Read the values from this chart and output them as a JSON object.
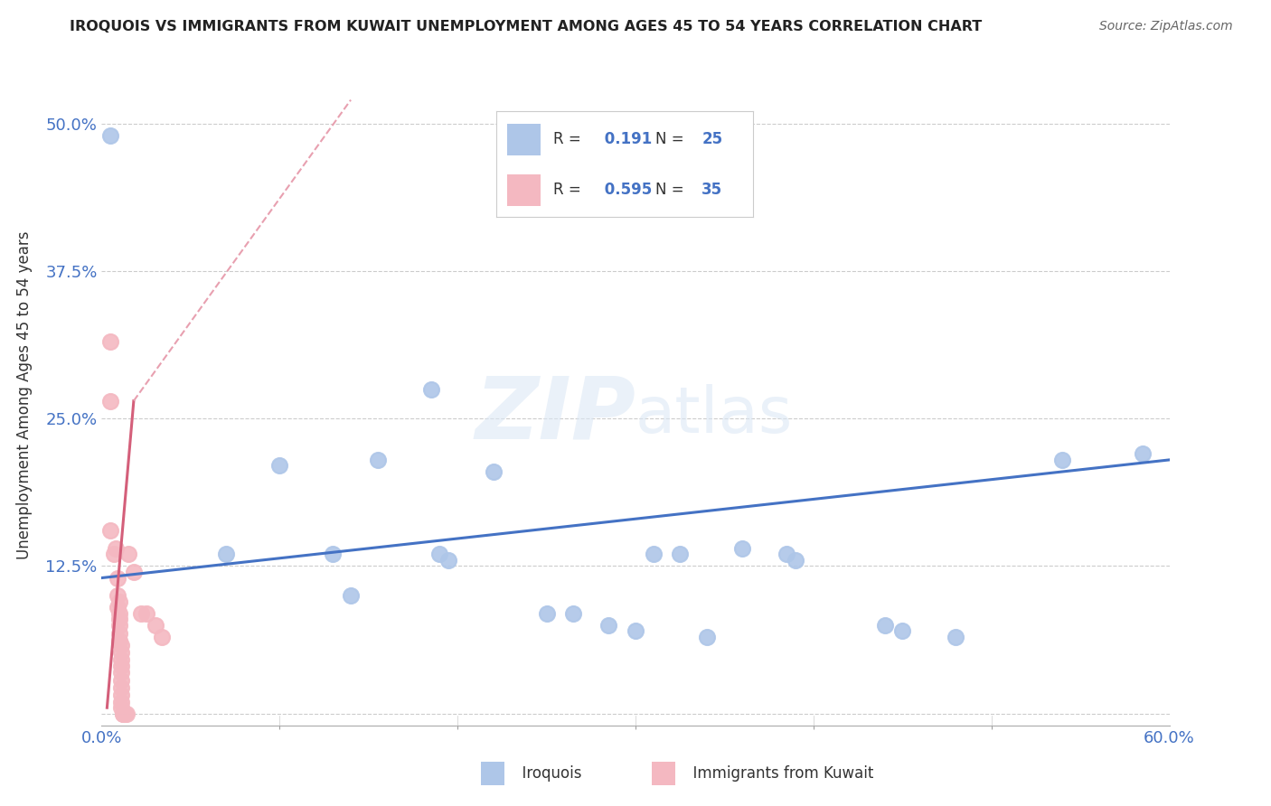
{
  "title": "IROQUOIS VS IMMIGRANTS FROM KUWAIT UNEMPLOYMENT AMONG AGES 45 TO 54 YEARS CORRELATION CHART",
  "source": "Source: ZipAtlas.com",
  "ylabel": "Unemployment Among Ages 45 to 54 years",
  "watermark": "ZIPatlas",
  "xlim": [
    0.0,
    0.6
  ],
  "ylim": [
    -0.01,
    0.55
  ],
  "yticks": [
    0.0,
    0.125,
    0.25,
    0.375,
    0.5
  ],
  "yticklabels": [
    "",
    "12.5%",
    "25.0%",
    "37.5%",
    "50.0%"
  ],
  "xticks": [
    0.0,
    0.6
  ],
  "xticklabels": [
    "0.0%",
    "60.0%"
  ],
  "R_iroquois": 0.191,
  "N_iroquois": 25,
  "R_kuwait": 0.595,
  "N_kuwait": 35,
  "iroquois_color": "#aec6e8",
  "kuwait_color": "#f4b8c1",
  "iroquois_line_color": "#4472c4",
  "kuwait_line_color": "#d45f7a",
  "kuwait_dash_color": "#e8a0b0",
  "iroquois_scatter": [
    [
      0.005,
      0.49
    ],
    [
      0.07,
      0.135
    ],
    [
      0.1,
      0.21
    ],
    [
      0.13,
      0.135
    ],
    [
      0.14,
      0.1
    ],
    [
      0.155,
      0.215
    ],
    [
      0.185,
      0.275
    ],
    [
      0.19,
      0.135
    ],
    [
      0.195,
      0.13
    ],
    [
      0.22,
      0.205
    ],
    [
      0.25,
      0.085
    ],
    [
      0.265,
      0.085
    ],
    [
      0.285,
      0.075
    ],
    [
      0.3,
      0.07
    ],
    [
      0.31,
      0.135
    ],
    [
      0.325,
      0.135
    ],
    [
      0.34,
      0.065
    ],
    [
      0.36,
      0.14
    ],
    [
      0.385,
      0.135
    ],
    [
      0.39,
      0.13
    ],
    [
      0.44,
      0.075
    ],
    [
      0.45,
      0.07
    ],
    [
      0.48,
      0.065
    ],
    [
      0.54,
      0.215
    ],
    [
      0.585,
      0.22
    ]
  ],
  "kuwait_scatter": [
    [
      0.005,
      0.315
    ],
    [
      0.005,
      0.265
    ],
    [
      0.005,
      0.155
    ],
    [
      0.007,
      0.135
    ],
    [
      0.008,
      0.14
    ],
    [
      0.009,
      0.115
    ],
    [
      0.009,
      0.1
    ],
    [
      0.009,
      0.09
    ],
    [
      0.01,
      0.095
    ],
    [
      0.01,
      0.085
    ],
    [
      0.01,
      0.08
    ],
    [
      0.01,
      0.075
    ],
    [
      0.01,
      0.068
    ],
    [
      0.01,
      0.062
    ],
    [
      0.011,
      0.058
    ],
    [
      0.011,
      0.052
    ],
    [
      0.011,
      0.046
    ],
    [
      0.011,
      0.04
    ],
    [
      0.011,
      0.035
    ],
    [
      0.011,
      0.028
    ],
    [
      0.011,
      0.022
    ],
    [
      0.011,
      0.016
    ],
    [
      0.011,
      0.01
    ],
    [
      0.011,
      0.005
    ],
    [
      0.012,
      0.0
    ],
    [
      0.012,
      0.0
    ],
    [
      0.013,
      0.0
    ],
    [
      0.013,
      0.0
    ],
    [
      0.014,
      0.0
    ],
    [
      0.015,
      0.135
    ],
    [
      0.018,
      0.12
    ],
    [
      0.022,
      0.085
    ],
    [
      0.025,
      0.085
    ],
    [
      0.03,
      0.075
    ],
    [
      0.034,
      0.065
    ]
  ],
  "iroquois_line": {
    "x0": 0.0,
    "y0": 0.115,
    "x1": 0.6,
    "y1": 0.215
  },
  "kuwait_line_solid": {
    "x0": 0.003,
    "y0": 0.005,
    "x1": 0.018,
    "y1": 0.265
  },
  "kuwait_line_dash": {
    "x0": 0.018,
    "y0": 0.265,
    "x1": 0.14,
    "y1": 0.52
  }
}
